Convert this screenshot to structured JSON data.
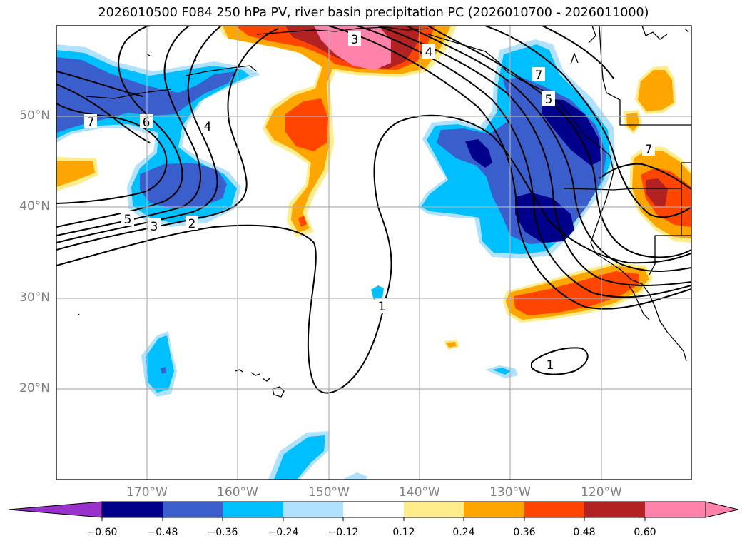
{
  "title": "2026010500 F084 250 hPa PV, river basin precipitation PC (2026010700 - 2026011000)",
  "lat_labels": [
    "50°N",
    "40°N",
    "30°N",
    "20°N"
  ],
  "lon_labels": [
    "170°W",
    "160°W",
    "150°W",
    "140°W",
    "130°W",
    "120°W"
  ],
  "contour_labels": [
    "7",
    "6",
    "4",
    "5",
    "3",
    "2",
    "3",
    "4",
    "7",
    "5",
    "7",
    "1",
    "1"
  ],
  "colorbar": {
    "tick_labels": [
      "−0.60",
      "−0.48",
      "−0.36",
      "−0.24",
      "−0.12",
      "0.12",
      "0.24",
      "0.36",
      "0.48",
      "0.60"
    ],
    "colors": [
      "#9932cc",
      "#00008b",
      "#3a5fcd",
      "#00bfff",
      "#b0e2ff",
      "#ffffff",
      "#ffec8b",
      "#ffa500",
      "#ff4500",
      "#b22222",
      "#ff82ab"
    ]
  },
  "colors": {
    "grid": "#b0b0b0",
    "tick_label": "#7f7f7f",
    "contour": "#000000"
  }
}
